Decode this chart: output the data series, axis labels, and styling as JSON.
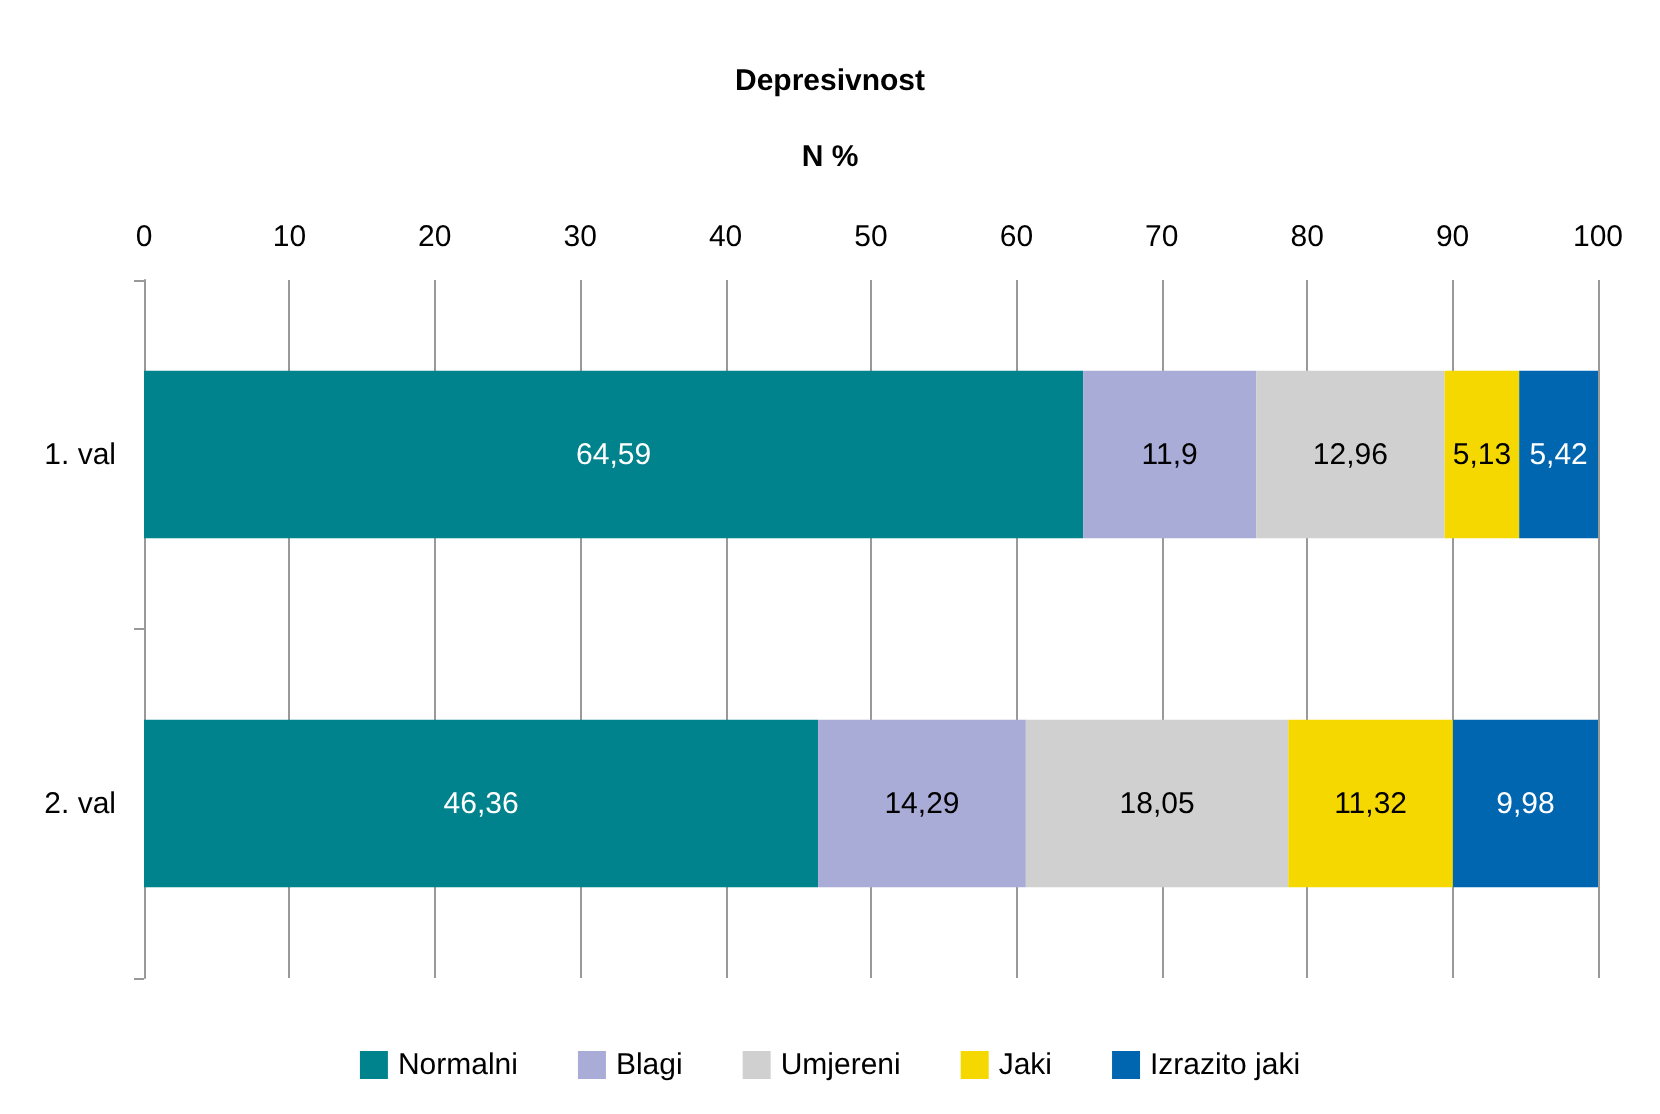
{
  "chart_data": {
    "type": "bar",
    "orientation": "horizontal",
    "stacked": true,
    "title": "Depresivnost",
    "xlabel": "N %",
    "categories": [
      "1. val",
      "2. val"
    ],
    "series": [
      {
        "name": "Normalni",
        "color": "#00838c",
        "values": [
          64.59,
          46.36
        ],
        "value_labels": [
          "64,59",
          "46,36"
        ]
      },
      {
        "name": "Blagi",
        "color": "#a9acd6",
        "values": [
          11.9,
          14.29
        ],
        "value_labels": [
          "11,9",
          "14,29"
        ]
      },
      {
        "name": "Umjereni",
        "color": "#d0d0d0",
        "values": [
          12.96,
          18.05
        ],
        "value_labels": [
          "12,96",
          "18,05"
        ]
      },
      {
        "name": "Jaki",
        "color": "#f4d800",
        "values": [
          5.13,
          11.32
        ],
        "value_labels": [
          "5,13",
          "11,32"
        ]
      },
      {
        "name": "Izrazito jaki",
        "color": "#0066b0",
        "values": [
          5.42,
          9.98
        ],
        "value_labels": [
          "5,42",
          "9,98"
        ]
      }
    ],
    "xlim": [
      0,
      100
    ],
    "xticks": [
      0,
      10,
      20,
      30,
      40,
      50,
      60,
      70,
      80,
      90,
      100
    ],
    "grid": "x",
    "legend": "bottom"
  }
}
